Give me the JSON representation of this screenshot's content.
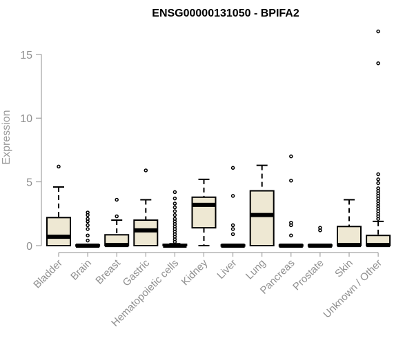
{
  "chart_data": {
    "type": "boxplot",
    "title": "ENSG00000131050 - BPIFA2",
    "xlabel": "",
    "ylabel": "Expression",
    "ylim": [
      0,
      17.5
    ],
    "yticks": [
      0,
      5,
      10,
      15
    ],
    "grid": false,
    "colors": {
      "box_fill": "#eee8d3",
      "stroke": "#000000",
      "axis": "#8f8f8f",
      "label": "#8f8f8f"
    },
    "categories": [
      "Bladder",
      "Brain",
      "Breast",
      "Gastric",
      "Hematopoietic cells",
      "Kidney",
      "Liver",
      "Lung",
      "Pancreas",
      "Prostate",
      "Skin",
      "Unknown / Other"
    ],
    "series": [
      {
        "q1": 0.0,
        "median": 0.7,
        "q3": 2.2,
        "whisker_low": 0.0,
        "whisker_high": 4.6,
        "outliers": [
          6.2
        ]
      },
      {
        "q1": 0.0,
        "median": 0.0,
        "q3": 0.05,
        "whisker_low": 0.0,
        "whisker_high": 0.1,
        "outliers": [
          0.4,
          0.8,
          1.3,
          1.6,
          1.9,
          2.1,
          2.4,
          2.6
        ]
      },
      {
        "q1": 0.0,
        "median": 0.05,
        "q3": 0.85,
        "whisker_low": 0.0,
        "whisker_high": 2.0,
        "outliers": [
          2.3,
          3.6
        ]
      },
      {
        "q1": 0.0,
        "median": 1.2,
        "q3": 2.0,
        "whisker_low": 0.0,
        "whisker_high": 3.6,
        "outliers": [
          5.9
        ]
      },
      {
        "q1": 0.0,
        "median": 0.0,
        "q3": 0.1,
        "whisker_low": 0.0,
        "whisker_high": 0.15,
        "outliers": [
          0.3,
          0.5,
          0.7,
          0.9,
          1.1,
          1.3,
          1.5,
          1.7,
          1.9,
          2.1,
          2.4,
          2.7,
          3.0,
          3.3,
          3.7,
          4.2
        ]
      },
      {
        "q1": 1.4,
        "median": 3.2,
        "q3": 3.8,
        "whisker_low": 0.0,
        "whisker_high": 5.2,
        "outliers": []
      },
      {
        "q1": 0.0,
        "median": 0.0,
        "q3": 0.05,
        "whisker_low": 0.0,
        "whisker_high": 0.1,
        "outliers": [
          0.9,
          1.3,
          1.6,
          3.9,
          6.1
        ]
      },
      {
        "q1": 0.0,
        "median": 2.4,
        "q3": 4.3,
        "whisker_low": 0.0,
        "whisker_high": 6.3,
        "outliers": []
      },
      {
        "q1": 0.0,
        "median": 0.0,
        "q3": 0.05,
        "whisker_low": 0.0,
        "whisker_high": 0.1,
        "outliers": [
          0.8,
          1.6,
          1.8,
          5.1,
          7.0
        ]
      },
      {
        "q1": 0.0,
        "median": 0.0,
        "q3": 0.05,
        "whisker_low": 0.0,
        "whisker_high": 0.1,
        "outliers": [
          1.2,
          1.4
        ]
      },
      {
        "q1": 0.0,
        "median": 0.05,
        "q3": 1.5,
        "whisker_low": 0.0,
        "whisker_high": 3.6,
        "outliers": []
      },
      {
        "q1": 0.0,
        "median": 0.05,
        "q3": 0.8,
        "whisker_low": 0.0,
        "whisker_high": 1.9,
        "outliers": [
          2.1,
          2.3,
          2.5,
          2.7,
          2.9,
          3.1,
          3.3,
          3.5,
          3.7,
          3.9,
          4.1,
          4.3,
          4.5,
          4.9,
          5.2,
          5.6,
          14.3,
          16.8
        ]
      }
    ]
  }
}
